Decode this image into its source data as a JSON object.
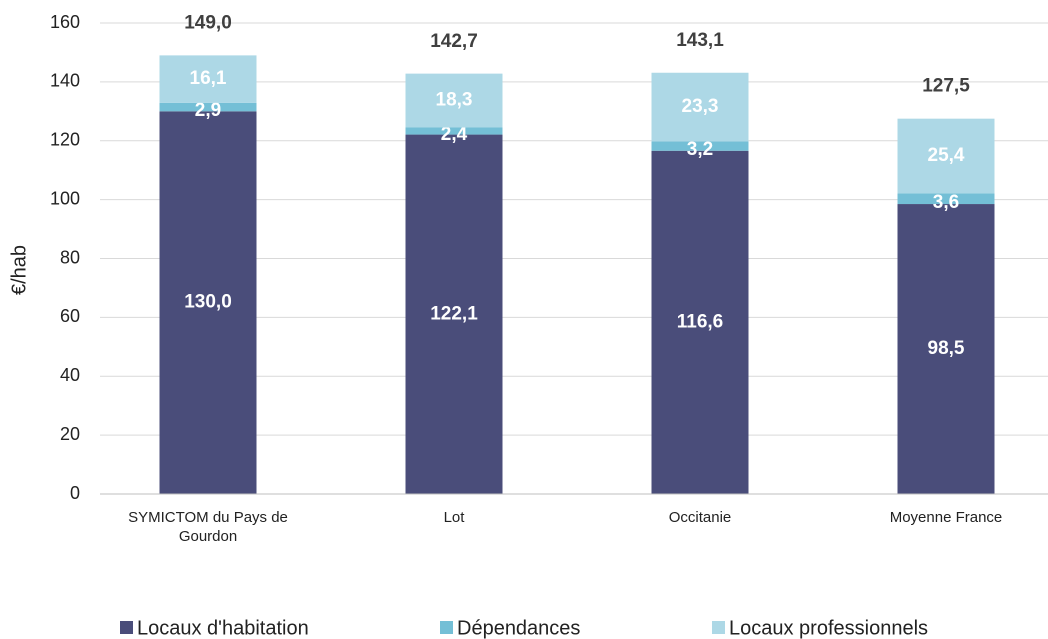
{
  "chart_data": {
    "type": "stacked_bar",
    "y_label": "€/hab",
    "categories": [
      [
        "SYMICTOM du Pays de",
        "Gourdon"
      ],
      [
        "Lot"
      ],
      [
        "Occitanie"
      ],
      [
        "Moyenne France"
      ]
    ],
    "series": [
      {
        "name": "Locaux d'habitation",
        "color": "#4a4d7a",
        "values": [
          130.0,
          122.1,
          116.6,
          98.5
        ],
        "value_labels": [
          "130,0",
          "122,1",
          "116,6",
          "98,5"
        ]
      },
      {
        "name": "Dépendances",
        "color": "#74bfd6",
        "values": [
          2.9,
          2.4,
          3.2,
          3.6
        ],
        "value_labels": [
          "2,9",
          "2,4",
          "3,2",
          "3,6"
        ]
      },
      {
        "name": "Locaux professionnels",
        "color": "#add8e6",
        "values": [
          16.1,
          18.3,
          23.3,
          25.4
        ],
        "value_labels": [
          "16,1",
          "18,3",
          "23,3",
          "25,4"
        ]
      }
    ],
    "totals": {
      "values": [
        149.0,
        142.7,
        143.1,
        127.5
      ],
      "value_labels": [
        "149,0",
        "142,7",
        "143,1",
        "127,5"
      ]
    },
    "ylim": [
      0,
      160
    ],
    "yticks": [
      0,
      20,
      40,
      60,
      80,
      100,
      120,
      140,
      160
    ],
    "grid": true
  }
}
